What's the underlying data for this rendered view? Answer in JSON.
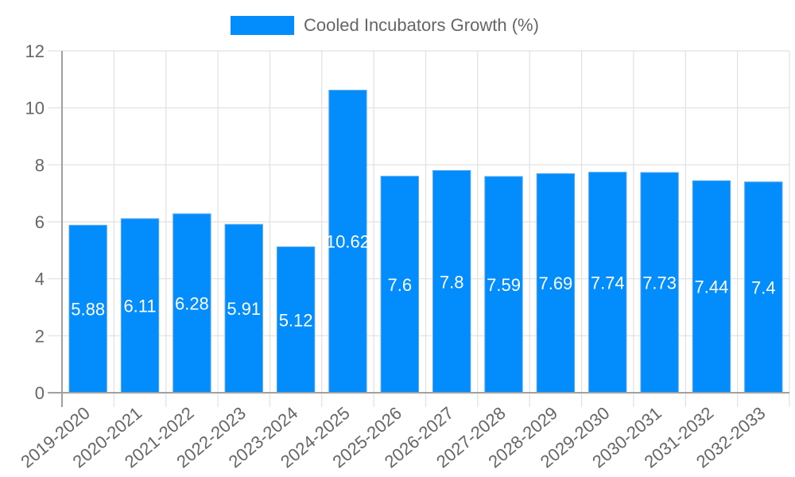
{
  "legend": {
    "label": "Cooled Incubators Growth (%)",
    "color": "#038cfc"
  },
  "colors": {
    "bar": "#038cfc",
    "grid": "#e1e1e1",
    "axis": "#a0a0a0",
    "tick_text": "#666666",
    "value_text": "#ffffff"
  },
  "chart_data": {
    "type": "bar",
    "title": "",
    "xlabel": "",
    "ylabel": "",
    "categories": [
      "2019-2020",
      "2020-2021",
      "2021-2022",
      "2022-2023",
      "2023-2024",
      "2024-2025",
      "2025-2026",
      "2026-2027",
      "2027-2028",
      "2028-2029",
      "2029-2030",
      "2030-2031",
      "2031-2032",
      "2032-2033"
    ],
    "series": [
      {
        "name": "Cooled Incubators Growth (%)",
        "values": [
          5.88,
          6.11,
          6.28,
          5.91,
          5.12,
          10.62,
          7.6,
          7.8,
          7.59,
          7.69,
          7.74,
          7.73,
          7.44,
          7.4
        ]
      }
    ],
    "ylim": [
      0,
      12
    ],
    "yticks": [
      0,
      2,
      4,
      6,
      8,
      10,
      12
    ],
    "grid": true,
    "legend_position": "top",
    "data_labels": true
  }
}
